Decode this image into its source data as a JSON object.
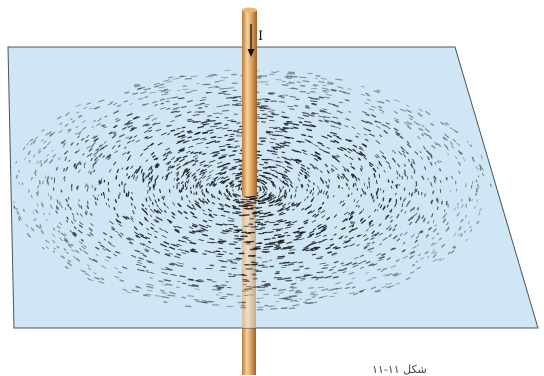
{
  "figure": {
    "current_label": "I",
    "caption": "شکل ۱۱-۱۱",
    "colors": {
      "plane_fill": "#cfe7f5",
      "plane_edge": "#4a5560",
      "filings": "#1d1d1d",
      "wire_light": "#f1c58a",
      "wire_dark": "#b97a3a"
    },
    "icons": [
      "current-direction-arrow-icon"
    ]
  }
}
